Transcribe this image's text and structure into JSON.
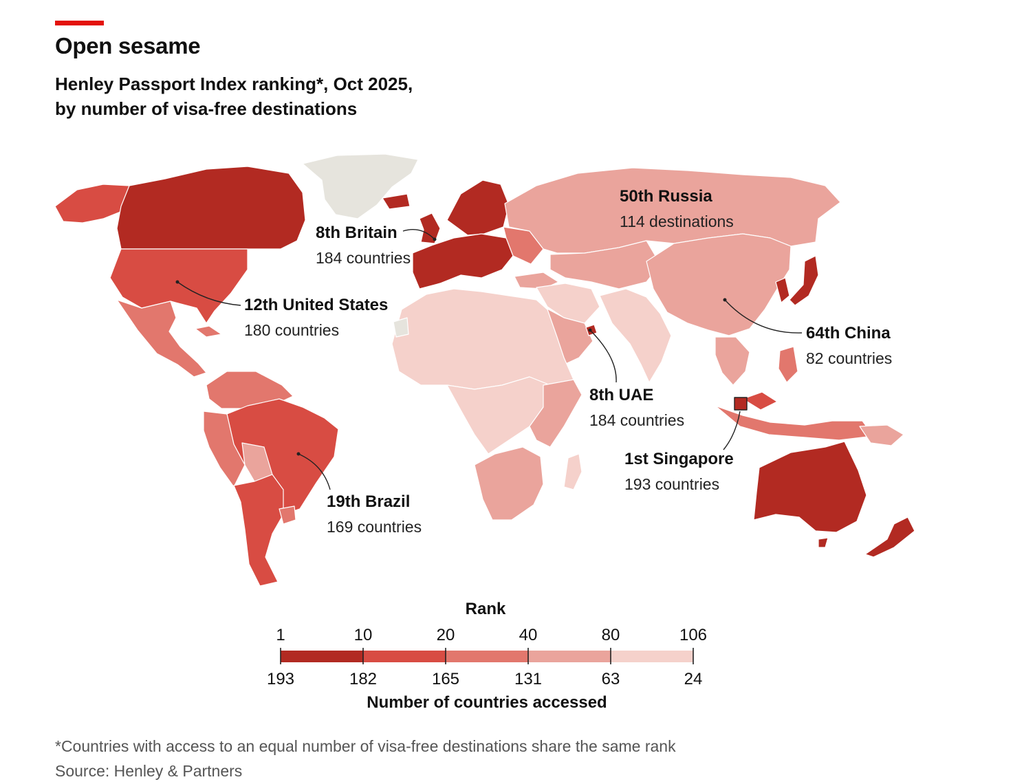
{
  "header": {
    "title": "Open sesame",
    "subtitle_line1": "Henley Passport Index ranking*, Oct 2025,",
    "subtitle_line2": "by number of visa-free destinations"
  },
  "colors": {
    "accent": "#e3120b",
    "tier1": "#b22a22",
    "tier2": "#d84c43",
    "tier3": "#e2776d",
    "tier4": "#eaa49c",
    "tier5": "#f5d1cb",
    "no_data": "#e6e4dd",
    "border": "#ffffff"
  },
  "annotations": [
    {
      "id": "britain",
      "name": "8th Britain",
      "detail": "184 countries"
    },
    {
      "id": "usa",
      "name": "12th United States",
      "detail": "180 countries"
    },
    {
      "id": "russia",
      "name": "50th Russia",
      "detail": "114 destinations"
    },
    {
      "id": "china",
      "name": "64th China",
      "detail": "82 countries"
    },
    {
      "id": "uae",
      "name": "8th UAE",
      "detail": "184 countries"
    },
    {
      "id": "singapore",
      "name": "1st Singapore",
      "detail": "193 countries"
    },
    {
      "id": "brazil",
      "name": "19th Brazil",
      "detail": "169 countries"
    }
  ],
  "legend": {
    "title": "Rank",
    "caption": "Number of countries accessed",
    "rank_ticks": [
      "1",
      "10",
      "20",
      "40",
      "80",
      "106"
    ],
    "count_ticks": [
      "193",
      "182",
      "165",
      "131",
      "63",
      "24"
    ]
  },
  "footnote": "*Countries with access to an equal number of visa-free destinations share the same rank",
  "source": "Source: Henley & Partners"
}
